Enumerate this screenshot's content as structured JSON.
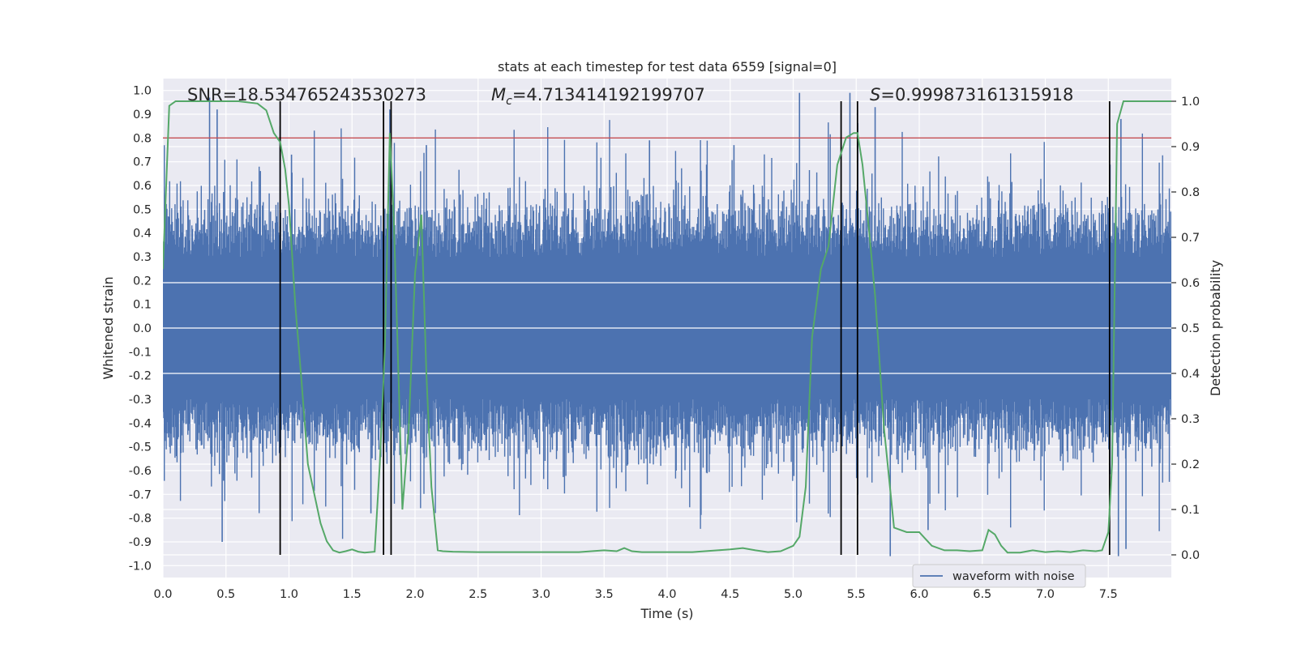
{
  "chart_data": {
    "type": "line",
    "title": "stats at each timestep for test data 6559 [signal=0]",
    "xlabel": "Time (s)",
    "ylabel_left": "Whitened strain",
    "ylabel_right": "Detection probability",
    "xlim": [
      0.0,
      8.0
    ],
    "ylim_left": [
      -1.05,
      1.05
    ],
    "ylim_right": [
      -0.05,
      1.05
    ],
    "x_ticks": [
      "0.0",
      "0.5",
      "1.0",
      "1.5",
      "2.0",
      "2.5",
      "3.0",
      "3.5",
      "4.0",
      "4.5",
      "5.0",
      "5.5",
      "6.0",
      "6.5",
      "7.0",
      "7.5"
    ],
    "y_ticks_left": [
      "1.0",
      "0.9",
      "0.8",
      "0.7",
      "0.6",
      "0.5",
      "0.4",
      "0.3",
      "0.2",
      "0.1",
      "0.0",
      "-0.1",
      "-0.2",
      "-0.3",
      "-0.4",
      "-0.5",
      "-0.6",
      "-0.7",
      "-0.8",
      "-0.9",
      "-1.0"
    ],
    "y_ticks_right": [
      "1.0",
      "0.9",
      "0.8",
      "0.7",
      "0.6",
      "0.5",
      "0.4",
      "0.3",
      "0.2",
      "0.1",
      "0.0"
    ],
    "annotations": {
      "snr": "SNR=18.534765243530273",
      "mc": "=4.713414192199707",
      "mc_symbol": "M",
      "mc_sub": "c",
      "s": "=0.999873161315918",
      "s_symbol": "S"
    },
    "threshold": 0.8,
    "vertical_lines": [
      0.93,
      1.75,
      1.81,
      5.38,
      5.51,
      7.51
    ],
    "waveform": {
      "name": "waveform with noise",
      "base_amplitude": 0.42,
      "peaks": [
        {
          "x": 0.37,
          "y": 0.97
        },
        {
          "x": 0.43,
          "y": 0.92
        },
        {
          "x": 0.47,
          "y": -0.9
        },
        {
          "x": 0.93,
          "y": 0.85
        },
        {
          "x": 1.8,
          "y": 0.92
        },
        {
          "x": 1.02,
          "y": 0.73
        },
        {
          "x": 2.09,
          "y": 0.77
        },
        {
          "x": 3.86,
          "y": 0.79
        },
        {
          "x": 4.53,
          "y": 0.77
        },
        {
          "x": 5.05,
          "y": 0.99
        },
        {
          "x": 5.45,
          "y": 0.99
        },
        {
          "x": 5.65,
          "y": 0.93
        },
        {
          "x": 5.77,
          "y": -0.96
        },
        {
          "x": 6.07,
          "y": -0.85
        },
        {
          "x": 7.6,
          "y": 0.88
        },
        {
          "x": 7.58,
          "y": -0.96
        },
        {
          "x": 7.64,
          "y": -0.93
        },
        {
          "x": 1.65,
          "y": -0.78
        }
      ]
    },
    "probability": {
      "x": [
        0.0,
        0.05,
        0.1,
        0.2,
        0.4,
        0.6,
        0.75,
        0.82,
        0.88,
        0.93,
        0.97,
        1.0,
        1.05,
        1.1,
        1.15,
        1.25,
        1.3,
        1.35,
        1.4,
        1.45,
        1.5,
        1.55,
        1.6,
        1.68,
        1.72,
        1.76,
        1.8,
        1.83,
        1.86,
        1.9,
        1.95,
        2.0,
        2.05,
        2.09,
        2.13,
        2.18,
        2.22,
        2.3,
        2.5,
        2.8,
        3.0,
        3.3,
        3.5,
        3.6,
        3.66,
        3.72,
        3.8,
        4.0,
        4.2,
        4.4,
        4.5,
        4.6,
        4.7,
        4.8,
        4.9,
        5.0,
        5.05,
        5.1,
        5.15,
        5.22,
        5.28,
        5.35,
        5.42,
        5.48,
        5.51,
        5.55,
        5.6,
        5.65,
        5.72,
        5.8,
        5.9,
        6.0,
        6.1,
        6.2,
        6.3,
        6.4,
        6.5,
        6.55,
        6.6,
        6.65,
        6.7,
        6.8,
        6.9,
        7.0,
        7.1,
        7.2,
        7.3,
        7.4,
        7.45,
        7.5,
        7.53,
        7.57,
        7.62,
        7.7,
        7.8,
        7.9,
        8.0
      ],
      "y": [
        0.63,
        0.99,
        1.0,
        1.0,
        1.0,
        1.0,
        0.995,
        0.98,
        0.93,
        0.91,
        0.85,
        0.77,
        0.55,
        0.38,
        0.2,
        0.07,
        0.03,
        0.01,
        0.005,
        0.008,
        0.012,
        0.007,
        0.005,
        0.007,
        0.2,
        0.45,
        0.93,
        0.75,
        0.48,
        0.1,
        0.28,
        0.62,
        0.75,
        0.4,
        0.15,
        0.01,
        0.008,
        0.007,
        0.006,
        0.006,
        0.006,
        0.006,
        0.01,
        0.008,
        0.015,
        0.008,
        0.006,
        0.006,
        0.006,
        0.01,
        0.012,
        0.015,
        0.01,
        0.006,
        0.008,
        0.02,
        0.04,
        0.15,
        0.48,
        0.63,
        0.68,
        0.86,
        0.92,
        0.93,
        0.93,
        0.86,
        0.72,
        0.57,
        0.28,
        0.06,
        0.05,
        0.05,
        0.02,
        0.01,
        0.01,
        0.008,
        0.01,
        0.055,
        0.045,
        0.02,
        0.005,
        0.005,
        0.01,
        0.006,
        0.008,
        0.006,
        0.01,
        0.008,
        0.01,
        0.05,
        0.2,
        0.95,
        1.0,
        1.0,
        1.0,
        1.0,
        1.0
      ]
    },
    "legend": {
      "label": "waveform with noise",
      "position": "lower-right"
    },
    "colors": {
      "waveform": "#4c72b0",
      "probability": "#55a868",
      "threshold": "#c44e52",
      "vlines": "#000000",
      "background": "#eaeaf2",
      "grid": "#ffffff"
    }
  }
}
